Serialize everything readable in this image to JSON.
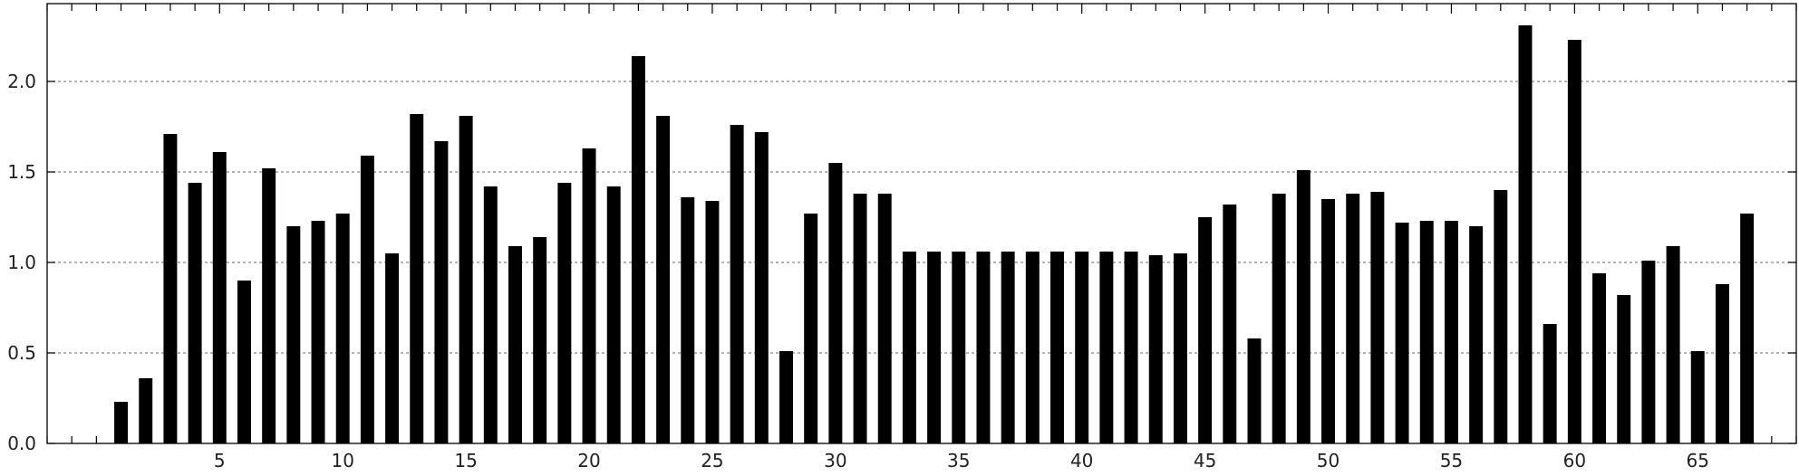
{
  "chart_data": {
    "type": "bar",
    "title": "",
    "xlabel": "",
    "ylabel": "",
    "x": [
      1,
      2,
      3,
      4,
      5,
      6,
      7,
      8,
      9,
      10,
      11,
      12,
      13,
      14,
      15,
      16,
      17,
      18,
      19,
      20,
      21,
      22,
      23,
      24,
      25,
      26,
      27,
      28,
      29,
      30,
      31,
      32,
      33,
      34,
      35,
      36,
      37,
      38,
      39,
      40,
      41,
      42,
      43,
      44,
      45,
      46,
      47,
      48,
      49,
      50,
      51,
      52,
      53,
      54,
      55,
      56,
      57,
      58,
      59,
      60,
      61,
      62,
      63,
      64,
      65,
      66,
      67
    ],
    "values": [
      0.23,
      0.36,
      1.71,
      1.44,
      1.61,
      0.9,
      1.52,
      1.2,
      1.23,
      1.27,
      1.59,
      1.05,
      1.82,
      1.67,
      1.81,
      1.42,
      1.09,
      1.14,
      1.44,
      1.63,
      1.42,
      2.14,
      1.81,
      1.36,
      1.34,
      1.76,
      1.72,
      0.51,
      1.27,
      1.55,
      1.38,
      1.38,
      1.06,
      1.06,
      1.06,
      1.06,
      1.06,
      1.06,
      1.06,
      1.06,
      1.06,
      1.06,
      1.04,
      1.05,
      1.25,
      1.32,
      0.58,
      1.38,
      1.51,
      1.35,
      1.38,
      1.39,
      1.22,
      1.23,
      1.23,
      1.2,
      1.4,
      2.31,
      0.66,
      2.23,
      0.94,
      0.82,
      1.01,
      1.09,
      0.51,
      0.88,
      1.27
    ],
    "xlim": [
      -2,
      69
    ],
    "ylim": [
      0,
      2.43
    ],
    "xticks": [
      5,
      10,
      15,
      20,
      25,
      30,
      35,
      40,
      45,
      50,
      55,
      60,
      65
    ],
    "xtick_labels": [
      "5",
      "10",
      "15",
      "20",
      "25",
      "30",
      "35",
      "40",
      "45",
      "50",
      "55",
      "60",
      "65"
    ],
    "yticks": [
      0,
      0.5,
      1.0,
      1.5,
      2.0
    ],
    "ytick_labels": [
      "0.0",
      "0.5",
      "1.0",
      "1.5",
      "2.0"
    ],
    "grid": "horizontal-dotted",
    "bar_color": "#000000",
    "grid_color": "#888888",
    "axis_color": "#000000"
  }
}
